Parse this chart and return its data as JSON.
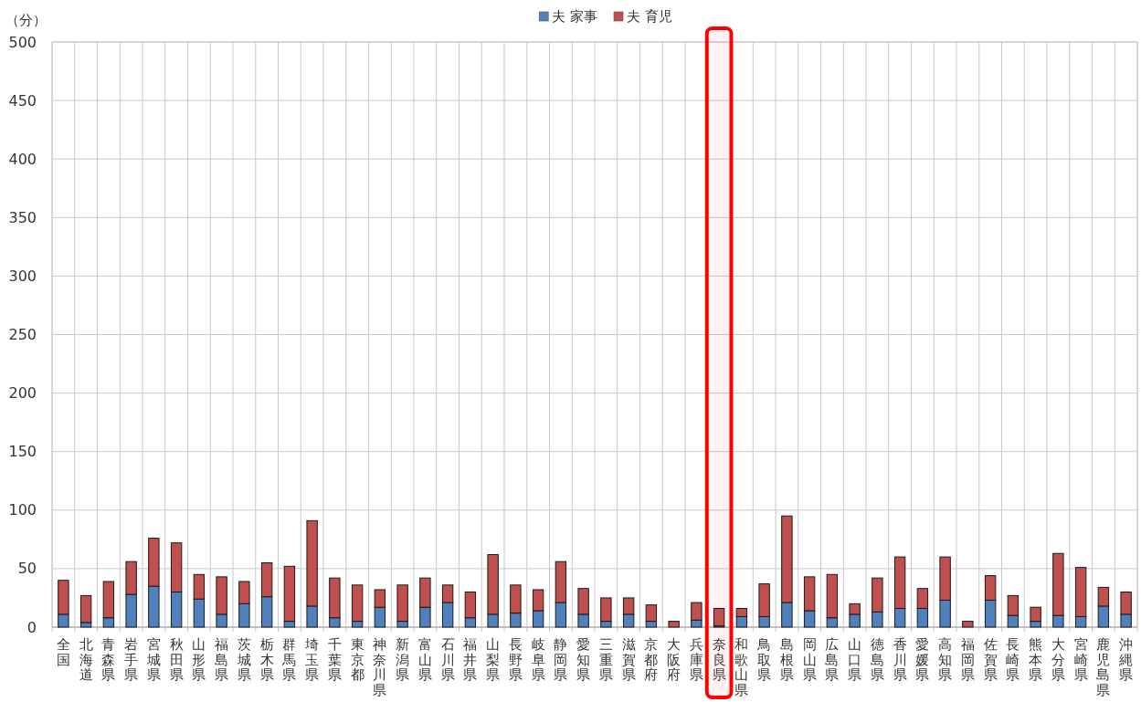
{
  "chart_data": {
    "type": "bar",
    "stacked": true,
    "ylabel": "（分）",
    "categories": [
      "全国",
      "北海道",
      "青森県",
      "岩手県",
      "宮城県",
      "秋田県",
      "山形県",
      "福島県",
      "茨城県",
      "栃木県",
      "群馬県",
      "埼玉県",
      "千葉県",
      "東京都",
      "神奈川県",
      "新潟県",
      "富山県",
      "石川県",
      "福井県",
      "山梨県",
      "長野県",
      "岐阜県",
      "静岡県",
      "愛知県",
      "三重県",
      "滋賀県",
      "京都府",
      "大阪府",
      "兵庫県",
      "奈良県",
      "和歌山県",
      "鳥取県",
      "島根県",
      "岡山県",
      "広島県",
      "山口県",
      "徳島県",
      "香川県",
      "愛媛県",
      "高知県",
      "福岡県",
      "佐賀県",
      "長崎県",
      "熊本県",
      "大分県",
      "宮崎県",
      "鹿児島県",
      "沖縄県"
    ],
    "series": [
      {
        "name": "夫 家事",
        "color": "#4f81bd",
        "values": [
          11,
          4,
          8,
          28,
          35,
          30,
          24,
          11,
          20,
          26,
          5,
          18,
          8,
          5,
          17,
          5,
          17,
          21,
          8,
          11,
          12,
          14,
          21,
          11,
          5,
          11,
          5,
          0,
          6,
          1,
          9,
          9,
          21,
          14,
          8,
          11,
          13,
          16,
          16,
          23,
          0,
          23,
          10,
          5,
          10,
          9,
          18,
          11
        ]
      },
      {
        "name": "夫 育児",
        "color": "#c0504d",
        "values": [
          29,
          23,
          31,
          28,
          41,
          42,
          21,
          32,
          19,
          29,
          47,
          73,
          34,
          31,
          15,
          31,
          25,
          15,
          22,
          51,
          24,
          18,
          35,
          22,
          20,
          14,
          14,
          5,
          15,
          15,
          7,
          28,
          74,
          29,
          37,
          9,
          29,
          44,
          17,
          37,
          5,
          21,
          17,
          12,
          53,
          42,
          16,
          19
        ]
      }
    ],
    "ylim": [
      0,
      500
    ],
    "yticks": [
      0,
      50,
      100,
      150,
      200,
      250,
      300,
      350,
      400,
      450,
      500
    ],
    "grid": true,
    "legend": "top",
    "bands": [
      {
        "axis": "x",
        "from": "奈良県",
        "to": "奈良県",
        "color": "#ff0000"
      }
    ]
  }
}
